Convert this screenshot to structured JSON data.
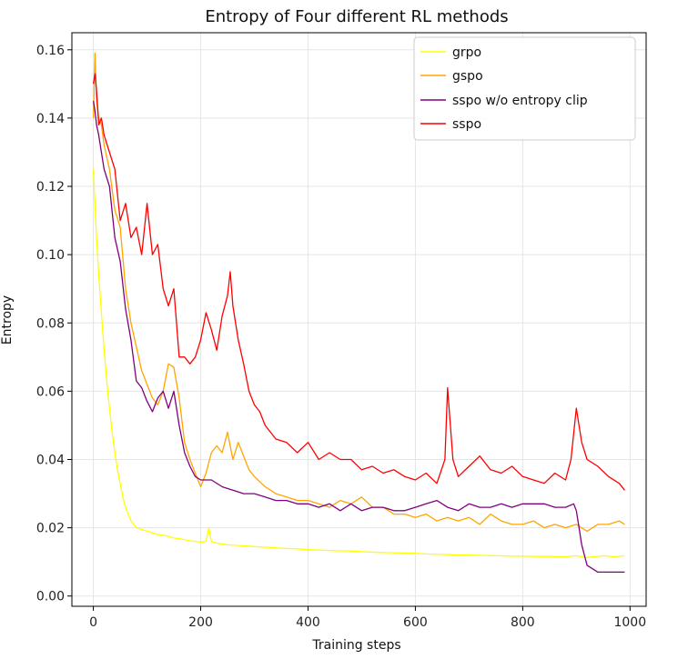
{
  "chart_data": {
    "type": "line",
    "title": "Entropy of Four different RL methods",
    "xlabel": "Training steps",
    "ylabel": "Entropy",
    "xlim": [
      -40,
      1030
    ],
    "ylim": [
      -0.003,
      0.165
    ],
    "xticks": [
      0,
      200,
      400,
      600,
      800,
      1000
    ],
    "xtick_labels": [
      "0",
      "200",
      "400",
      "600",
      "800",
      "1000"
    ],
    "yticks": [
      0.0,
      0.02,
      0.04,
      0.06,
      0.08,
      0.1,
      0.12,
      0.14,
      0.16
    ],
    "ytick_labels": [
      "0.00",
      "0.02",
      "0.04",
      "0.06",
      "0.08",
      "0.10",
      "0.12",
      "0.14",
      "0.16"
    ],
    "grid": true,
    "legend_position": "top-right",
    "series": [
      {
        "name": "grpo",
        "color": "#ffff00",
        "x": [
          0,
          5,
          10,
          15,
          20,
          25,
          30,
          35,
          40,
          45,
          50,
          55,
          60,
          65,
          70,
          75,
          80,
          90,
          100,
          110,
          120,
          130,
          140,
          150,
          160,
          170,
          180,
          190,
          200,
          210,
          215,
          220,
          230,
          250,
          270,
          300,
          330,
          350,
          380,
          400,
          430,
          450,
          480,
          500,
          530,
          550,
          580,
          600,
          620,
          650,
          680,
          700,
          720,
          750,
          780,
          800,
          830,
          850,
          880,
          900,
          920,
          950,
          970,
          990
        ],
        "y": [
          0.125,
          0.108,
          0.094,
          0.083,
          0.072,
          0.063,
          0.055,
          0.048,
          0.042,
          0.037,
          0.033,
          0.029,
          0.026,
          0.024,
          0.022,
          0.021,
          0.02,
          0.0195,
          0.019,
          0.0185,
          0.018,
          0.0178,
          0.0175,
          0.017,
          0.0168,
          0.0165,
          0.0162,
          0.016,
          0.0158,
          0.016,
          0.02,
          0.016,
          0.0155,
          0.015,
          0.0148,
          0.0145,
          0.0142,
          0.014,
          0.0138,
          0.0136,
          0.0134,
          0.0133,
          0.0132,
          0.013,
          0.0128,
          0.0127,
          0.0126,
          0.0125,
          0.0123,
          0.0122,
          0.012,
          0.012,
          0.0119,
          0.0118,
          0.0117,
          0.0117,
          0.0116,
          0.0116,
          0.0115,
          0.0118,
          0.0113,
          0.0118,
          0.0115,
          0.0118
        ]
      },
      {
        "name": "gspo",
        "color": "#ffa500",
        "x": [
          0,
          3,
          6,
          10,
          15,
          20,
          30,
          40,
          50,
          60,
          70,
          80,
          90,
          100,
          110,
          120,
          130,
          140,
          150,
          160,
          170,
          180,
          190,
          200,
          210,
          220,
          230,
          240,
          250,
          260,
          270,
          280,
          290,
          300,
          320,
          340,
          360,
          380,
          400,
          420,
          440,
          460,
          480,
          500,
          520,
          540,
          560,
          580,
          600,
          620,
          640,
          660,
          680,
          700,
          720,
          740,
          760,
          780,
          800,
          820,
          840,
          860,
          880,
          900,
          920,
          940,
          960,
          980,
          990
        ],
        "y": [
          0.14,
          0.159,
          0.145,
          0.14,
          0.138,
          0.132,
          0.125,
          0.113,
          0.108,
          0.09,
          0.08,
          0.073,
          0.066,
          0.062,
          0.058,
          0.056,
          0.06,
          0.068,
          0.067,
          0.058,
          0.045,
          0.04,
          0.036,
          0.032,
          0.036,
          0.042,
          0.044,
          0.042,
          0.048,
          0.04,
          0.045,
          0.041,
          0.037,
          0.035,
          0.032,
          0.03,
          0.029,
          0.028,
          0.028,
          0.027,
          0.026,
          0.028,
          0.027,
          0.029,
          0.026,
          0.026,
          0.024,
          0.024,
          0.023,
          0.024,
          0.022,
          0.023,
          0.022,
          0.023,
          0.021,
          0.024,
          0.022,
          0.021,
          0.021,
          0.022,
          0.02,
          0.021,
          0.02,
          0.021,
          0.019,
          0.021,
          0.021,
          0.022,
          0.021
        ]
      },
      {
        "name": "sspo w/o entropy clip",
        "color": "#800080",
        "x": [
          0,
          3,
          6,
          10,
          15,
          20,
          30,
          40,
          50,
          60,
          70,
          80,
          90,
          100,
          110,
          120,
          130,
          140,
          150,
          160,
          170,
          180,
          190,
          200,
          220,
          240,
          260,
          280,
          300,
          320,
          340,
          360,
          380,
          400,
          420,
          440,
          460,
          480,
          500,
          520,
          540,
          560,
          580,
          600,
          620,
          640,
          660,
          680,
          700,
          720,
          740,
          760,
          780,
          800,
          820,
          840,
          860,
          880,
          895,
          900,
          905,
          910,
          920,
          940,
          960,
          980,
          990
        ],
        "y": [
          0.145,
          0.142,
          0.138,
          0.135,
          0.13,
          0.125,
          0.12,
          0.105,
          0.098,
          0.084,
          0.075,
          0.063,
          0.061,
          0.057,
          0.054,
          0.058,
          0.06,
          0.055,
          0.06,
          0.05,
          0.042,
          0.038,
          0.035,
          0.034,
          0.034,
          0.032,
          0.031,
          0.03,
          0.03,
          0.029,
          0.028,
          0.028,
          0.027,
          0.027,
          0.026,
          0.027,
          0.025,
          0.027,
          0.025,
          0.026,
          0.026,
          0.025,
          0.025,
          0.026,
          0.027,
          0.028,
          0.026,
          0.025,
          0.027,
          0.026,
          0.026,
          0.027,
          0.026,
          0.027,
          0.027,
          0.027,
          0.026,
          0.026,
          0.027,
          0.025,
          0.02,
          0.015,
          0.009,
          0.007,
          0.007,
          0.007,
          0.007
        ]
      },
      {
        "name": "sspo",
        "color": "#ff0000",
        "x": [
          0,
          3,
          6,
          10,
          15,
          20,
          30,
          40,
          50,
          60,
          70,
          80,
          90,
          100,
          110,
          120,
          130,
          140,
          150,
          160,
          170,
          180,
          190,
          200,
          210,
          220,
          230,
          240,
          250,
          255,
          260,
          270,
          280,
          290,
          300,
          310,
          320,
          340,
          360,
          380,
          400,
          420,
          440,
          460,
          480,
          500,
          520,
          540,
          560,
          580,
          600,
          620,
          640,
          655,
          660,
          670,
          680,
          700,
          720,
          740,
          760,
          780,
          800,
          820,
          840,
          860,
          880,
          890,
          900,
          910,
          920,
          940,
          960,
          980,
          990
        ],
        "y": [
          0.15,
          0.153,
          0.148,
          0.138,
          0.14,
          0.135,
          0.13,
          0.125,
          0.11,
          0.115,
          0.105,
          0.108,
          0.1,
          0.115,
          0.1,
          0.103,
          0.09,
          0.085,
          0.09,
          0.07,
          0.07,
          0.068,
          0.07,
          0.075,
          0.083,
          0.078,
          0.072,
          0.082,
          0.088,
          0.095,
          0.085,
          0.075,
          0.068,
          0.06,
          0.056,
          0.054,
          0.05,
          0.046,
          0.045,
          0.042,
          0.045,
          0.04,
          0.042,
          0.04,
          0.04,
          0.037,
          0.038,
          0.036,
          0.037,
          0.035,
          0.034,
          0.036,
          0.033,
          0.04,
          0.061,
          0.04,
          0.035,
          0.038,
          0.041,
          0.037,
          0.036,
          0.038,
          0.035,
          0.034,
          0.033,
          0.036,
          0.034,
          0.04,
          0.055,
          0.045,
          0.04,
          0.038,
          0.035,
          0.033,
          0.031
        ]
      }
    ]
  }
}
